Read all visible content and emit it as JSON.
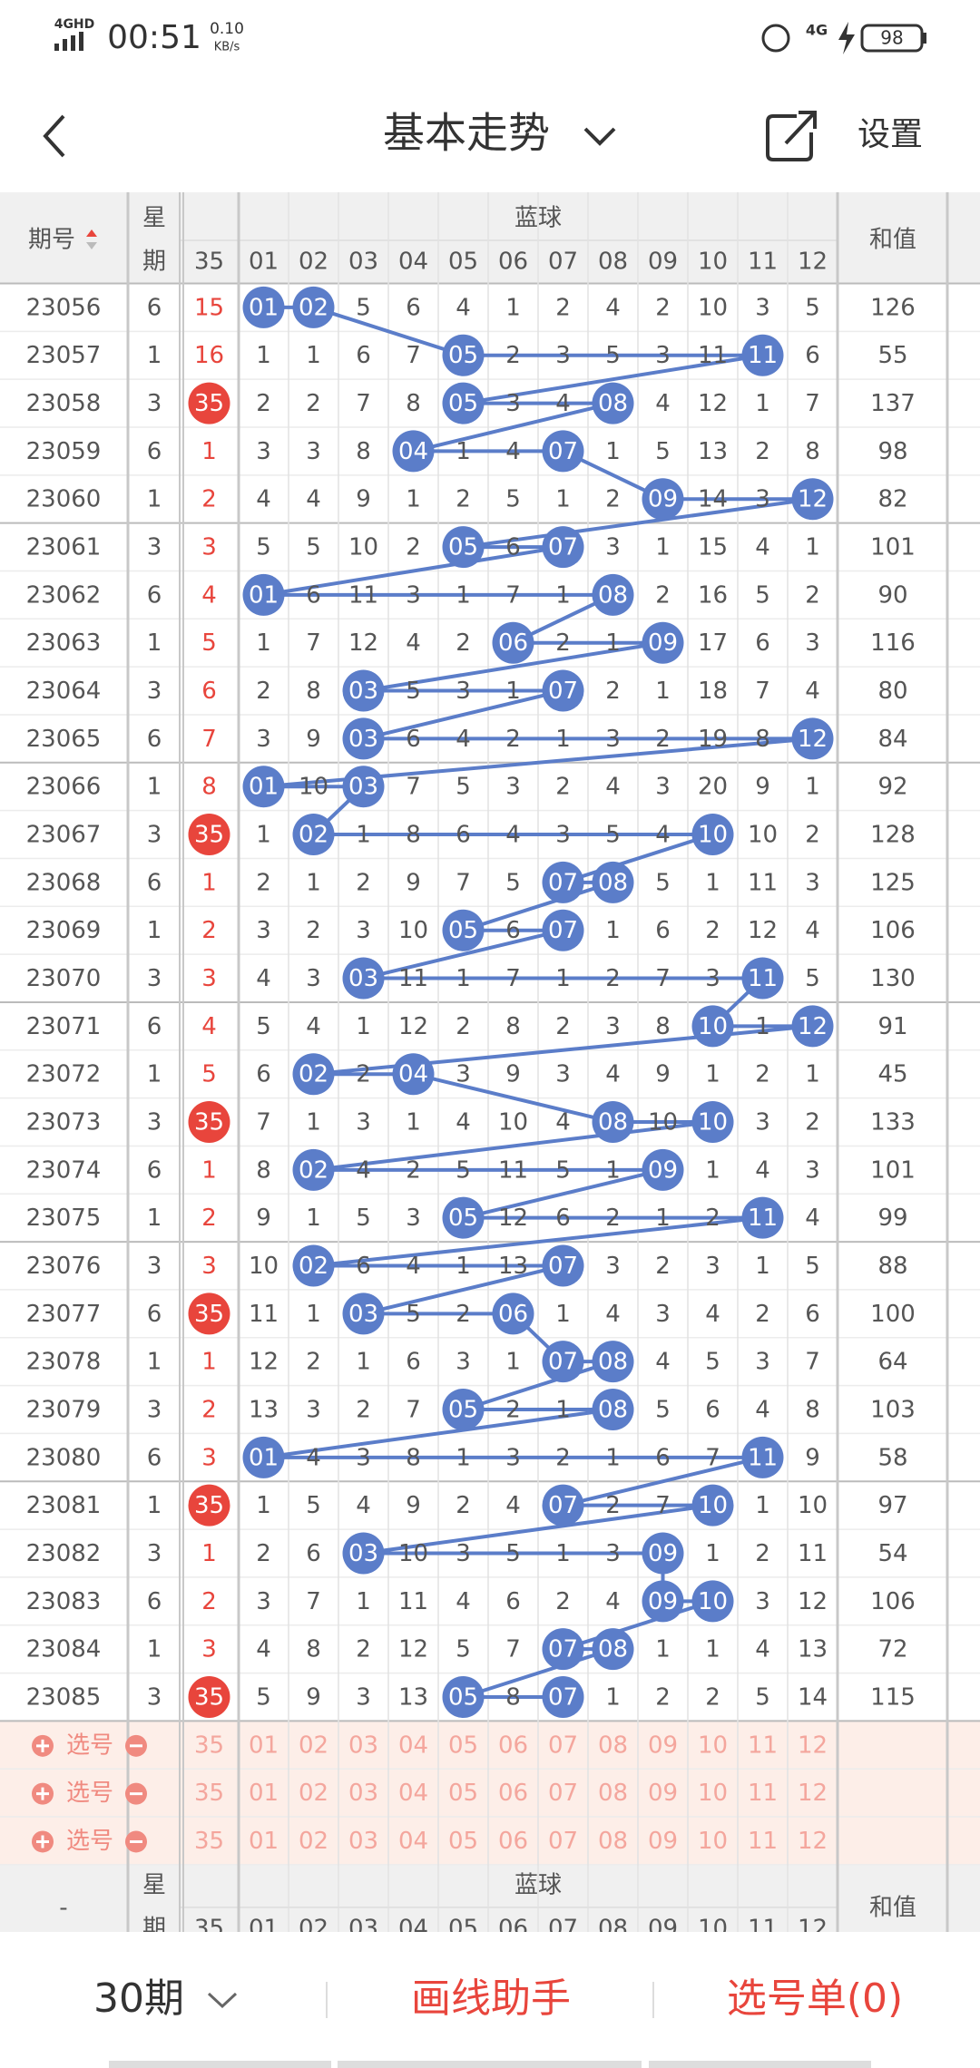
{
  "status_bar": {
    "network": "4GHD",
    "time": "00:51",
    "speed": "0.10",
    "speed_unit": "KB/s",
    "signal2": "4G",
    "battery": "98"
  },
  "nav": {
    "title": "基本走势",
    "settings": "设置"
  },
  "table": {
    "headers": {
      "issue": "期号",
      "week": [
        "星",
        "期"
      ],
      "blue": "蓝球",
      "sum": "和值",
      "columns": [
        "35",
        "01",
        "02",
        "03",
        "04",
        "05",
        "06",
        "07",
        "08",
        "09",
        "10",
        "11",
        "12"
      ]
    },
    "rows": [
      {
        "issue": "23056",
        "week": "6",
        "cells": [
          "15",
          "01",
          "02",
          "5",
          "6",
          "4",
          "1",
          "2",
          "4",
          "2",
          "10",
          "3",
          "5"
        ],
        "hits": [
          1,
          2
        ],
        "sum": "126"
      },
      {
        "issue": "23057",
        "week": "1",
        "cells": [
          "16",
          "1",
          "1",
          "6",
          "7",
          "05",
          "2",
          "3",
          "5",
          "3",
          "11",
          "11",
          "6"
        ],
        "hits": [
          5,
          11
        ],
        "sum": "55"
      },
      {
        "issue": "23058",
        "week": "3",
        "cells": [
          "35",
          "2",
          "2",
          "7",
          "8",
          "05",
          "3",
          "4",
          "08",
          "4",
          "12",
          "1",
          "7"
        ],
        "hits": [
          0,
          5,
          8
        ],
        "sum": "137"
      },
      {
        "issue": "23059",
        "week": "6",
        "cells": [
          "1",
          "3",
          "3",
          "8",
          "04",
          "1",
          "4",
          "07",
          "1",
          "5",
          "13",
          "2",
          "8"
        ],
        "hits": [
          4,
          7
        ],
        "sum": "98"
      },
      {
        "issue": "23060",
        "week": "1",
        "cells": [
          "2",
          "4",
          "4",
          "9",
          "1",
          "2",
          "5",
          "1",
          "2",
          "09",
          "14",
          "3",
          "12"
        ],
        "hits": [
          9,
          12
        ],
        "sum": "82"
      },
      {
        "issue": "23061",
        "week": "3",
        "cells": [
          "3",
          "5",
          "5",
          "10",
          "2",
          "05",
          "6",
          "07",
          "3",
          "1",
          "15",
          "4",
          "1"
        ],
        "hits": [
          5,
          7
        ],
        "sum": "101"
      },
      {
        "issue": "23062",
        "week": "6",
        "cells": [
          "4",
          "01",
          "6",
          "11",
          "3",
          "1",
          "7",
          "1",
          "08",
          "2",
          "16",
          "5",
          "2"
        ],
        "hits": [
          1,
          8
        ],
        "sum": "90"
      },
      {
        "issue": "23063",
        "week": "1",
        "cells": [
          "5",
          "1",
          "7",
          "12",
          "4",
          "2",
          "06",
          "2",
          "1",
          "09",
          "17",
          "6",
          "3"
        ],
        "hits": [
          6,
          9
        ],
        "sum": "116"
      },
      {
        "issue": "23064",
        "week": "3",
        "cells": [
          "6",
          "2",
          "8",
          "03",
          "5",
          "3",
          "1",
          "07",
          "2",
          "1",
          "18",
          "7",
          "4"
        ],
        "hits": [
          3,
          7
        ],
        "sum": "80"
      },
      {
        "issue": "23065",
        "week": "6",
        "cells": [
          "7",
          "3",
          "9",
          "03",
          "6",
          "4",
          "2",
          "1",
          "3",
          "2",
          "19",
          "8",
          "12"
        ],
        "hits": [
          3,
          12
        ],
        "sum": "84"
      },
      {
        "issue": "23066",
        "week": "1",
        "cells": [
          "8",
          "01",
          "10",
          "03",
          "7",
          "5",
          "3",
          "2",
          "4",
          "3",
          "20",
          "9",
          "1"
        ],
        "hits": [
          1,
          3
        ],
        "sum": "92"
      },
      {
        "issue": "23067",
        "week": "3",
        "cells": [
          "35",
          "1",
          "02",
          "1",
          "8",
          "6",
          "4",
          "3",
          "5",
          "4",
          "10",
          "10",
          "2"
        ],
        "hits": [
          0,
          2,
          10
        ],
        "sum": "128"
      },
      {
        "issue": "23068",
        "week": "6",
        "cells": [
          "1",
          "2",
          "1",
          "2",
          "9",
          "7",
          "5",
          "07",
          "08",
          "5",
          "1",
          "11",
          "3"
        ],
        "hits": [
          7,
          8
        ],
        "sum": "125"
      },
      {
        "issue": "23069",
        "week": "1",
        "cells": [
          "2",
          "3",
          "2",
          "3",
          "10",
          "05",
          "6",
          "07",
          "1",
          "6",
          "2",
          "12",
          "4"
        ],
        "hits": [
          5,
          7
        ],
        "sum": "106"
      },
      {
        "issue": "23070",
        "week": "3",
        "cells": [
          "3",
          "4",
          "3",
          "03",
          "11",
          "1",
          "7",
          "1",
          "2",
          "7",
          "3",
          "11",
          "5"
        ],
        "hits": [
          3,
          11
        ],
        "sum": "130"
      },
      {
        "issue": "23071",
        "week": "6",
        "cells": [
          "4",
          "5",
          "4",
          "1",
          "12",
          "2",
          "8",
          "2",
          "3",
          "8",
          "10",
          "1",
          "12"
        ],
        "hits": [
          10,
          12
        ],
        "sum": "91"
      },
      {
        "issue": "23072",
        "week": "1",
        "cells": [
          "5",
          "6",
          "02",
          "2",
          "04",
          "3",
          "9",
          "3",
          "4",
          "9",
          "1",
          "2",
          "1"
        ],
        "hits": [
          2,
          4
        ],
        "sum": "45"
      },
      {
        "issue": "23073",
        "week": "3",
        "cells": [
          "35",
          "7",
          "1",
          "3",
          "1",
          "4",
          "10",
          "4",
          "08",
          "10",
          "10",
          "3",
          "2"
        ],
        "hits": [
          0,
          8,
          10
        ],
        "sum": "133"
      },
      {
        "issue": "23074",
        "week": "6",
        "cells": [
          "1",
          "8",
          "02",
          "4",
          "2",
          "5",
          "11",
          "5",
          "1",
          "09",
          "1",
          "4",
          "3"
        ],
        "hits": [
          2,
          9
        ],
        "sum": "101"
      },
      {
        "issue": "23075",
        "week": "1",
        "cells": [
          "2",
          "9",
          "1",
          "5",
          "3",
          "05",
          "12",
          "6",
          "2",
          "1",
          "2",
          "11",
          "4"
        ],
        "hits": [
          5,
          11
        ],
        "sum": "99"
      },
      {
        "issue": "23076",
        "week": "3",
        "cells": [
          "3",
          "10",
          "02",
          "6",
          "4",
          "1",
          "13",
          "07",
          "3",
          "2",
          "3",
          "1",
          "5"
        ],
        "hits": [
          2,
          7
        ],
        "sum": "88"
      },
      {
        "issue": "23077",
        "week": "6",
        "cells": [
          "35",
          "11",
          "1",
          "03",
          "5",
          "2",
          "06",
          "1",
          "4",
          "3",
          "4",
          "2",
          "6"
        ],
        "hits": [
          0,
          3,
          6
        ],
        "sum": "100"
      },
      {
        "issue": "23078",
        "week": "1",
        "cells": [
          "1",
          "12",
          "2",
          "1",
          "6",
          "3",
          "1",
          "07",
          "08",
          "4",
          "5",
          "3",
          "7"
        ],
        "hits": [
          7,
          8
        ],
        "sum": "64"
      },
      {
        "issue": "23079",
        "week": "3",
        "cells": [
          "2",
          "13",
          "3",
          "2",
          "7",
          "05",
          "2",
          "1",
          "08",
          "5",
          "6",
          "4",
          "8"
        ],
        "hits": [
          5,
          8
        ],
        "sum": "103"
      },
      {
        "issue": "23080",
        "week": "6",
        "cells": [
          "3",
          "01",
          "4",
          "3",
          "8",
          "1",
          "3",
          "2",
          "1",
          "6",
          "7",
          "11",
          "9"
        ],
        "hits": [
          1,
          11
        ],
        "sum": "58"
      },
      {
        "issue": "23081",
        "week": "1",
        "cells": [
          "35",
          "1",
          "5",
          "4",
          "9",
          "2",
          "4",
          "07",
          "2",
          "7",
          "10",
          "1",
          "10"
        ],
        "hits": [
          0,
          7,
          10
        ],
        "sum": "97"
      },
      {
        "issue": "23082",
        "week": "3",
        "cells": [
          "1",
          "2",
          "6",
          "03",
          "10",
          "3",
          "5",
          "1",
          "3",
          "09",
          "1",
          "2",
          "11"
        ],
        "hits": [
          3,
          9
        ],
        "sum": "54"
      },
      {
        "issue": "23083",
        "week": "6",
        "cells": [
          "2",
          "3",
          "7",
          "1",
          "11",
          "4",
          "6",
          "2",
          "4",
          "09",
          "10",
          "3",
          "12"
        ],
        "hits": [
          9,
          10
        ],
        "sum": "106"
      },
      {
        "issue": "23084",
        "week": "1",
        "cells": [
          "3",
          "4",
          "8",
          "2",
          "12",
          "5",
          "7",
          "07",
          "08",
          "1",
          "1",
          "4",
          "13"
        ],
        "hits": [
          7,
          8
        ],
        "sum": "72"
      },
      {
        "issue": "23085",
        "week": "3",
        "cells": [
          "35",
          "5",
          "9",
          "3",
          "13",
          "05",
          "8",
          "07",
          "1",
          "2",
          "2",
          "5",
          "14"
        ],
        "hits": [
          0,
          5,
          7
        ],
        "sum": "115"
      }
    ],
    "select_label": "选号",
    "select_row_count": 3,
    "footer_issue": "-"
  },
  "bottom_bar": {
    "periods": "30期",
    "draw_helper": "画线助手",
    "selection": "选号单(0)"
  }
}
